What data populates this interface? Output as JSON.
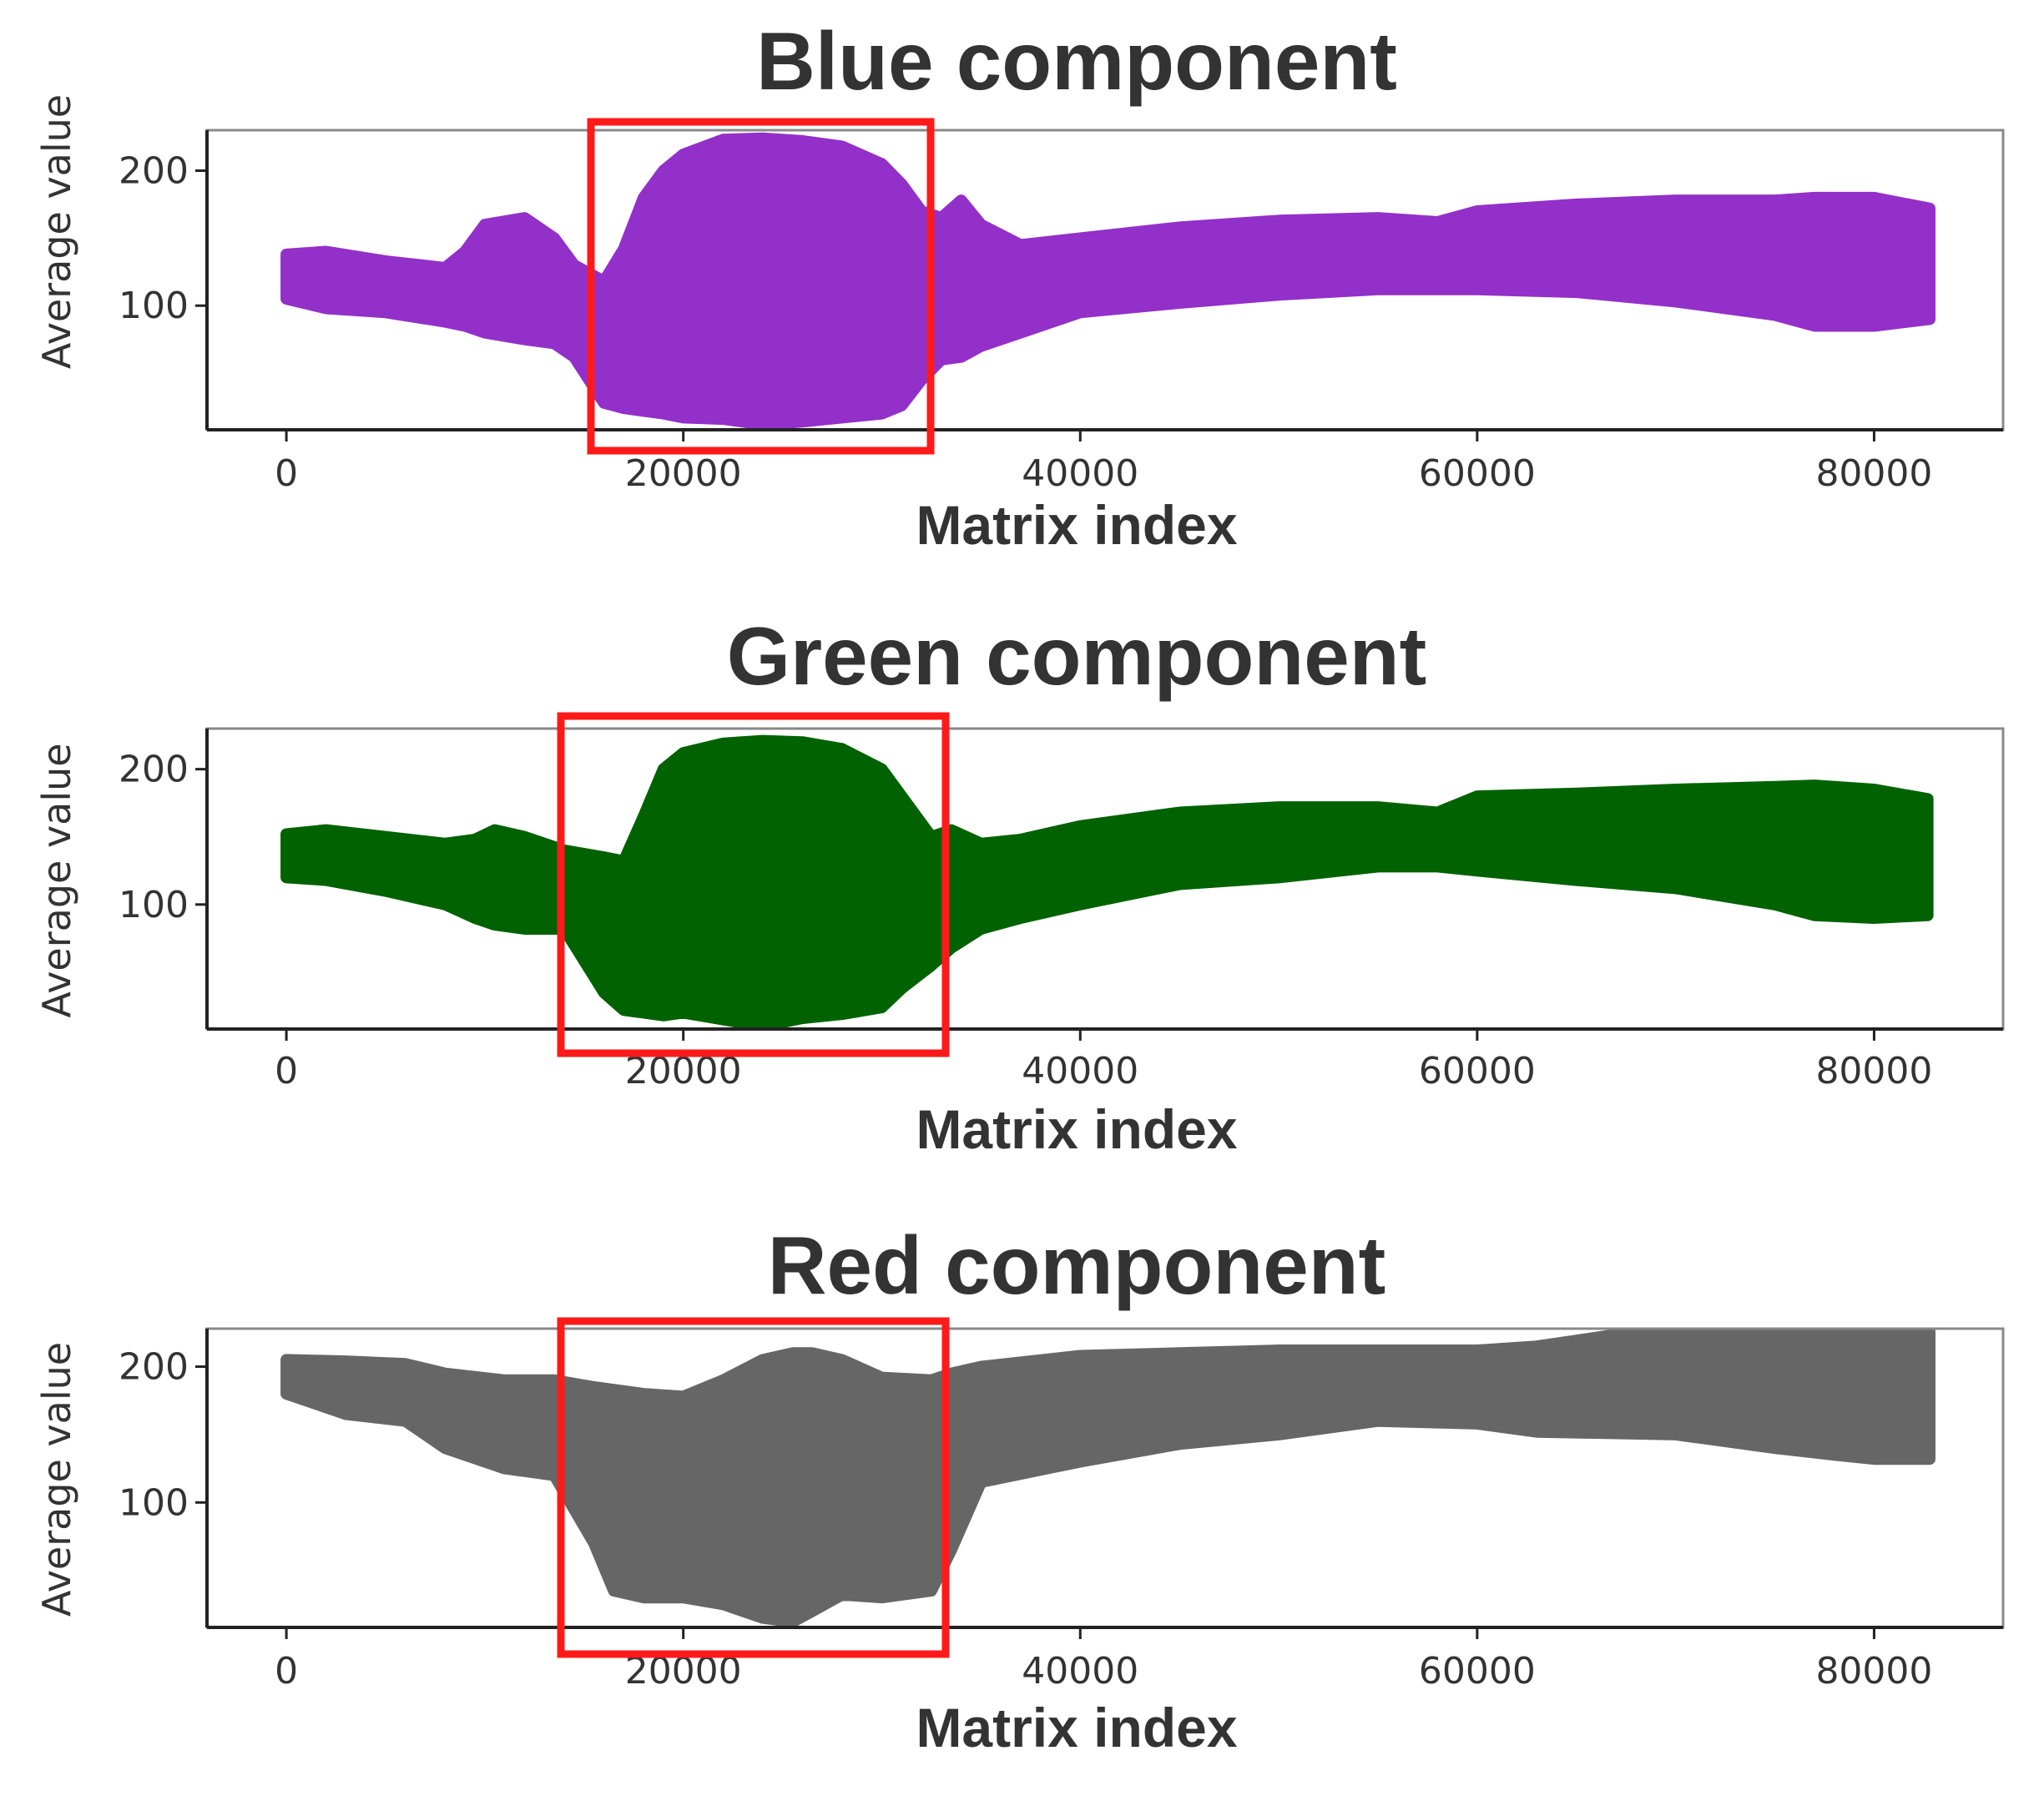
{
  "chart_data": [
    {
      "type": "area",
      "title": "Blue component",
      "xlabel": "Matrix index",
      "ylabel": "Average value",
      "color": "#9330C9",
      "xlim": [
        -4000,
        86500
      ],
      "ylim": [
        8,
        230
      ],
      "xticks": [
        "0",
        "20000",
        "40000",
        "60000",
        "80000"
      ],
      "yticks": [
        "100",
        "200"
      ],
      "x": [
        0,
        2000,
        5000,
        8000,
        9000,
        10000,
        12000,
        13500,
        14500,
        16000,
        17000,
        18000,
        19000,
        20000,
        22000,
        24000,
        26000,
        28000,
        30000,
        31000,
        32000,
        33000,
        34000,
        35000,
        37000,
        40000,
        45000,
        50000,
        55000,
        58000,
        60000,
        65000,
        70000,
        75000,
        77000,
        80000,
        82800
      ],
      "upper": [
        138,
        140,
        133,
        128,
        140,
        160,
        165,
        150,
        130,
        118,
        142,
        180,
        200,
        212,
        223,
        224,
        222,
        218,
        205,
        190,
        170,
        165,
        178,
        160,
        145,
        150,
        158,
        163,
        165,
        162,
        170,
        175,
        178,
        178,
        180,
        180,
        172
      ],
      "lower": [
        105,
        98,
        95,
        88,
        85,
        80,
        75,
        72,
        62,
        28,
        24,
        22,
        20,
        17,
        16,
        12,
        14,
        17,
        20,
        26,
        45,
        60,
        62,
        70,
        80,
        95,
        102,
        108,
        112,
        112,
        112,
        110,
        103,
        93,
        85,
        85,
        90
      ]
    },
    {
      "type": "area",
      "title": "Green component",
      "xlabel": "Matrix index",
      "ylabel": "Average value",
      "color": "#006200",
      "xlim": [
        -4000,
        86500
      ],
      "ylim": [
        8,
        230
      ],
      "xticks": [
        "0",
        "20000",
        "40000",
        "60000",
        "80000"
      ],
      "yticks": [
        "100",
        "200"
      ],
      "x": [
        0,
        2000,
        5000,
        8000,
        9500,
        10500,
        12000,
        14000,
        16000,
        17000,
        18000,
        19000,
        20000,
        22000,
        24000,
        26000,
        28000,
        30000,
        31000,
        32500,
        33500,
        35000,
        37000,
        40000,
        45000,
        50000,
        55000,
        58000,
        60000,
        65000,
        70000,
        75000,
        77000,
        80000,
        82700
      ],
      "upper": [
        152,
        155,
        150,
        145,
        148,
        155,
        150,
        140,
        135,
        132,
        165,
        200,
        212,
        219,
        221,
        220,
        215,
        200,
        180,
        150,
        155,
        145,
        148,
        158,
        168,
        172,
        172,
        168,
        180,
        182,
        185,
        187,
        188,
        185,
        178
      ],
      "lower": [
        120,
        118,
        110,
        100,
        90,
        85,
        82,
        82,
        35,
        22,
        20,
        18,
        20,
        15,
        10,
        16,
        19,
        24,
        38,
        55,
        68,
        82,
        90,
        100,
        115,
        120,
        128,
        128,
        125,
        118,
        112,
        100,
        92,
        90,
        92
      ]
    },
    {
      "type": "area",
      "title": "Red component",
      "xlabel": "Matrix index",
      "ylabel": "Average value",
      "color": "#666666",
      "xlim": [
        -4000,
        86500
      ],
      "ylim": [
        8,
        228
      ],
      "xticks": [
        "0",
        "20000",
        "40000",
        "60000",
        "80000"
      ],
      "yticks": [
        "100",
        "200"
      ],
      "x": [
        0,
        3000,
        6000,
        8000,
        11000,
        13500,
        15500,
        16500,
        18000,
        20000,
        22000,
        24000,
        25500,
        26500,
        28000,
        30000,
        32500,
        33500,
        35000,
        40000,
        45000,
        50000,
        55000,
        60000,
        63000,
        70000,
        75000,
        78000,
        80000,
        82800
      ],
      "upper": [
        205,
        204,
        202,
        195,
        190,
        190,
        185,
        183,
        180,
        178,
        190,
        205,
        210,
        210,
        205,
        192,
        190,
        195,
        200,
        208,
        210,
        212,
        212,
        212,
        215,
        230,
        230,
        230,
        230,
        226
      ],
      "lower": [
        180,
        165,
        160,
        140,
        125,
        120,
        70,
        35,
        30,
        30,
        25,
        15,
        12,
        20,
        32,
        30,
        35,
        65,
        115,
        130,
        143,
        150,
        160,
        158,
        152,
        150,
        140,
        135,
        132,
        132
      ]
    }
  ]
}
